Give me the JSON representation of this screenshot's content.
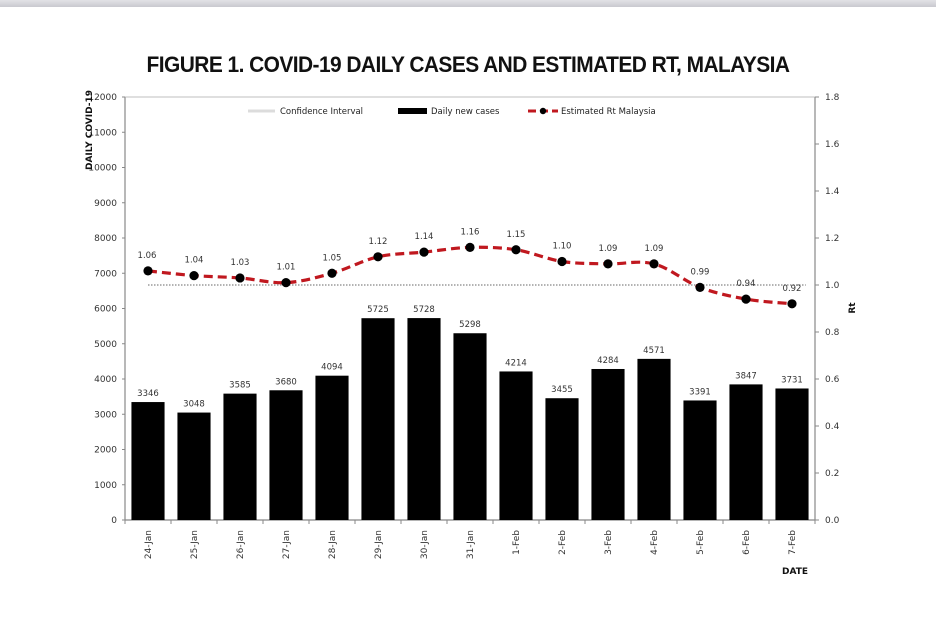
{
  "chart_data": {
    "type": "bar",
    "title": "FIGURE 1. COVID-19 DAILY CASES AND ESTIMATED RT, MALAYSIA",
    "xlabel": "DATE",
    "ylabel": "DAILY COVID-19",
    "y2label": "Rt",
    "categories": [
      "24-Jan",
      "25-Jan",
      "26-Jan",
      "27-Jan",
      "28-Jan",
      "29-Jan",
      "30-Jan",
      "31-Jan",
      "1-Feb",
      "2-Feb",
      "3-Feb",
      "4-Feb",
      "5-Feb",
      "6-Feb",
      "7-Feb"
    ],
    "ylim": [
      0,
      12000
    ],
    "y_ticks": [
      "0",
      "1000",
      "2000",
      "3000",
      "4000",
      "5000",
      "6000",
      "7000",
      "8000",
      "9000",
      "10000",
      "11000",
      "12000"
    ],
    "y2lim": [
      0,
      1.8
    ],
    "y2_ticks": [
      "0.0",
      "0.2",
      "0.4",
      "0.6",
      "0.8",
      "1.0",
      "1.2",
      "1.4",
      "1.6",
      "1.8"
    ],
    "series": [
      {
        "name": "Daily new cases",
        "type": "bar",
        "axis": "left",
        "color": "#000000",
        "values": [
          3346,
          3048,
          3585,
          3680,
          4094,
          5725,
          5728,
          5298,
          4214,
          3455,
          4284,
          4571,
          3391,
          3847,
          3731
        ],
        "labels": [
          "3346",
          "3048",
          "3585",
          "3680",
          "4094",
          "5725",
          "5728",
          "5298",
          "4214",
          "3455",
          "4284",
          "4571",
          "3391",
          "3847",
          "3731"
        ]
      },
      {
        "name": "Estimated Rt Malaysia",
        "type": "line",
        "axis": "right",
        "color": "#c0181f",
        "marker_color": "#000000",
        "style": "dashed",
        "values": [
          1.06,
          1.04,
          1.03,
          1.01,
          1.05,
          1.12,
          1.14,
          1.16,
          1.15,
          1.1,
          1.09,
          1.09,
          0.99,
          0.94,
          0.92
        ],
        "labels": [
          "1.06",
          "1.04",
          "1.03",
          "1.01",
          "1.05",
          "1.12",
          "1.14",
          "1.16",
          "1.15",
          "1.10",
          "1.09",
          "1.09",
          "0.99",
          "0.94",
          "0.92"
        ]
      },
      {
        "name": "Confidence Interval",
        "type": "line",
        "axis": "right",
        "color": "#9a9a9a",
        "style": "dotted",
        "value": 1.0
      }
    ],
    "legend": [
      "Confidence Interval",
      "Daily new cases",
      "Estimated Rt Malaysia"
    ],
    "legend_position": "top-center",
    "grid": false
  }
}
